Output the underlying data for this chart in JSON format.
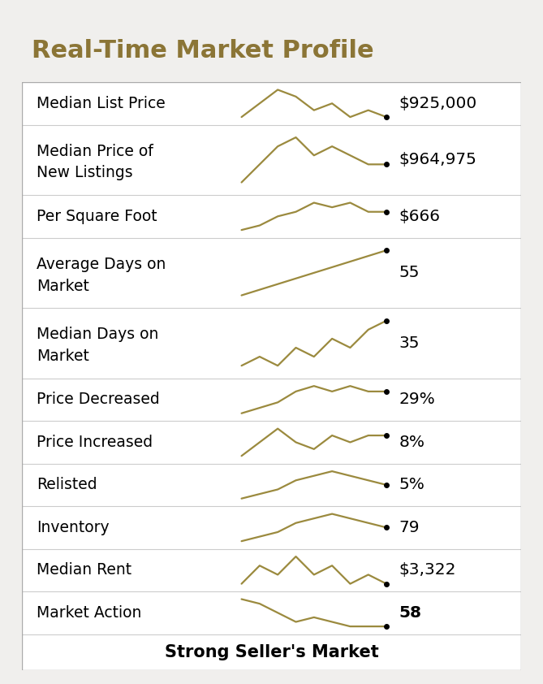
{
  "title": "Real-Time Market Profile",
  "title_color": "#8B7536",
  "bg_color": "#F0EFED",
  "table_bg": "#FFFFFF",
  "line_color": "#9B8A3E",
  "rows": [
    {
      "label": "Median List Price",
      "value": "$925,000",
      "bold": false,
      "two_line": false
    },
    {
      "label": "Median Price of\nNew Listings",
      "value": "$964,975",
      "bold": false,
      "two_line": true
    },
    {
      "label": "Per Square Foot",
      "value": "$666",
      "bold": false,
      "two_line": false
    },
    {
      "label": "Average Days on\nMarket",
      "value": "55",
      "bold": false,
      "two_line": true
    },
    {
      "label": "Median Days on\nMarket",
      "value": "35",
      "bold": false,
      "two_line": true
    },
    {
      "label": "Price Decreased",
      "value": "29%",
      "bold": false,
      "two_line": false
    },
    {
      "label": "Price Increased",
      "value": "8%",
      "bold": false,
      "two_line": false
    },
    {
      "label": "Relisted",
      "value": "5%",
      "bold": false,
      "two_line": false
    },
    {
      "label": "Inventory",
      "value": "79",
      "bold": false,
      "two_line": false
    },
    {
      "label": "Median Rent",
      "value": "$3,322",
      "bold": false,
      "two_line": false
    },
    {
      "label": "Market Action",
      "value": "58",
      "bold": true,
      "two_line": false
    }
  ],
  "footer": "Strong Seller's Market",
  "sparklines": [
    [
      3,
      5,
      7,
      6,
      4,
      5,
      3,
      4,
      3
    ],
    [
      2,
      4,
      6,
      7,
      5,
      6,
      5,
      4,
      4
    ],
    [
      1,
      2,
      4,
      5,
      7,
      6,
      7,
      5,
      5
    ],
    [
      1,
      2,
      3,
      4,
      5,
      6,
      7,
      8,
      9
    ],
    [
      2,
      3,
      2,
      4,
      3,
      5,
      4,
      6,
      7
    ],
    [
      1,
      2,
      3,
      5,
      6,
      5,
      6,
      5,
      5
    ],
    [
      2,
      4,
      6,
      4,
      3,
      5,
      4,
      5,
      5
    ],
    [
      1,
      2,
      3,
      5,
      6,
      7,
      6,
      5,
      4
    ],
    [
      1,
      2,
      3,
      5,
      6,
      7,
      6,
      5,
      4
    ],
    [
      3,
      5,
      4,
      6,
      4,
      5,
      3,
      4,
      3
    ],
    [
      9,
      8,
      6,
      4,
      5,
      4,
      3,
      3,
      3
    ]
  ]
}
